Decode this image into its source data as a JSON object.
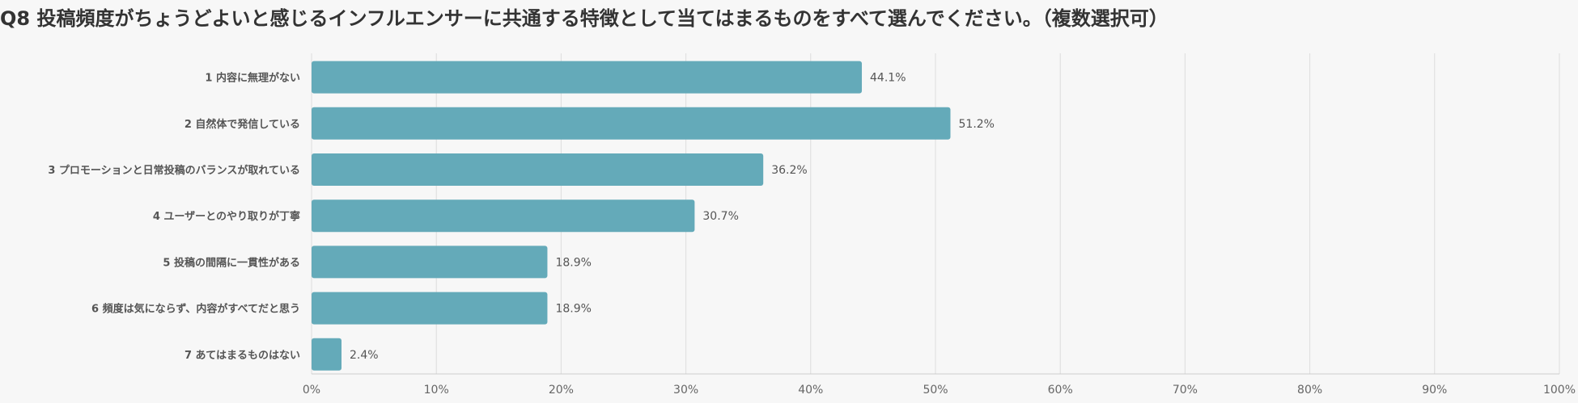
{
  "chart_data": {
    "type": "bar",
    "orientation": "horizontal",
    "title": "Q8 投稿頻度がちょうどよいと感じるインフルエンサーに共通する特徴として当てはまるものをすべて選んでください。（複数選択可）",
    "categories": [
      "1 内容に無理がない",
      "2 自然体で発信している",
      "3 プロモーションと日常投稿のバランスが取れている",
      "4 ユーザーとのやり取りが丁寧",
      "5 投稿の間隔に一貫性がある",
      "6 頻度は気にならず、内容がすべてだと思う",
      "7 あてはまるものはない"
    ],
    "values": [
      44.1,
      51.2,
      36.2,
      30.7,
      18.9,
      18.9,
      2.4
    ],
    "value_labels": [
      "44.1%",
      "51.2%",
      "36.2%",
      "30.7%",
      "18.9%",
      "18.9%",
      "2.4%"
    ],
    "xlim": [
      0,
      100
    ],
    "x_ticks": [
      0,
      10,
      20,
      30,
      40,
      50,
      60,
      70,
      80,
      90,
      100
    ],
    "x_tick_labels": [
      "0%",
      "10%",
      "20%",
      "30%",
      "40%",
      "50%",
      "60%",
      "70%",
      "80%",
      "90%",
      "100%"
    ],
    "xlabel": "",
    "ylabel": "",
    "grid": true,
    "bar_color": "#64aab9",
    "grid_color": "#dddddd"
  }
}
